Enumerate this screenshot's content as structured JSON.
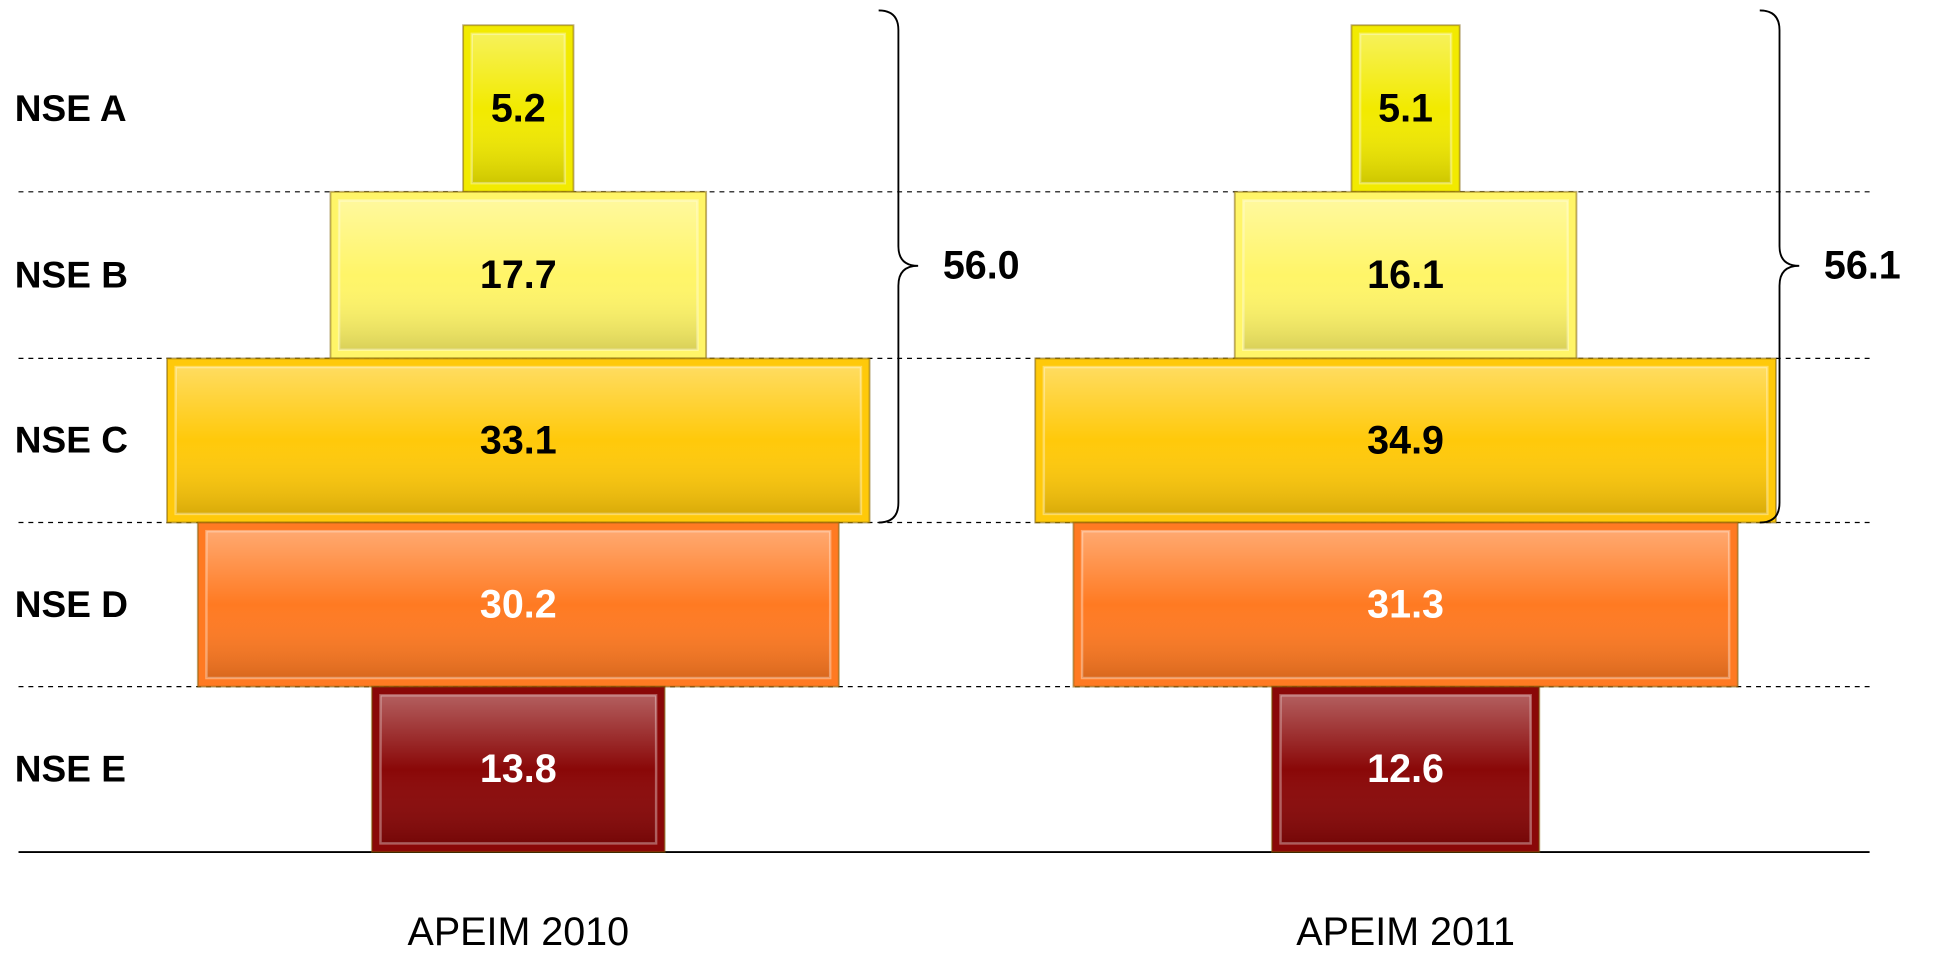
{
  "chart_data": {
    "type": "pyramid",
    "categories": [
      "NSE A",
      "NSE B",
      "NSE C",
      "NSE D",
      "NSE E"
    ],
    "colors": [
      "#f2ea00",
      "#fff568",
      "#ffc90a",
      "#ff7a22",
      "#8a0808"
    ],
    "label_colors": [
      "#000000",
      "#000000",
      "#000000",
      "#ffffff",
      "#ffffff"
    ],
    "series": [
      {
        "name": "APEIM 2010",
        "values": [
          5.2,
          17.7,
          33.1,
          30.2,
          13.8
        ]
      },
      {
        "name": "APEIM 2011",
        "values": [
          5.1,
          16.1,
          34.9,
          31.3,
          12.6
        ]
      }
    ],
    "brace_totals": [
      56.0,
      56.1
    ],
    "brace_total_labels": [
      "56.0",
      "56.1"
    ],
    "grid": true
  }
}
